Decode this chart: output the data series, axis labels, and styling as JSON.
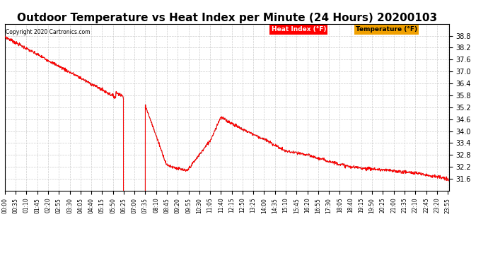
{
  "title": "Outdoor Temperature vs Heat Index per Minute (24 Hours) 20200103",
  "copyright_text": "Copyright 2020 Cartronics.com",
  "legend_label_heat": "Heat Index (°F)",
  "legend_label_temp": "Temperature (°F)",
  "ylim_min": 31.0,
  "ylim_max": 39.4,
  "yticks": [
    31.6,
    32.2,
    32.8,
    33.4,
    34.0,
    34.6,
    35.2,
    35.8,
    36.4,
    37.0,
    37.6,
    38.2,
    38.8
  ],
  "background_color": "#ffffff",
  "plot_bg": "#ffffff",
  "grid_color": "#cccccc",
  "line_color_heat": "red",
  "line_color_temp": "#888888",
  "title_fontsize": 11,
  "num_minutes": 1440,
  "tick_interval_min": 35,
  "figwidth": 6.9,
  "figheight": 3.75,
  "dpi": 100
}
